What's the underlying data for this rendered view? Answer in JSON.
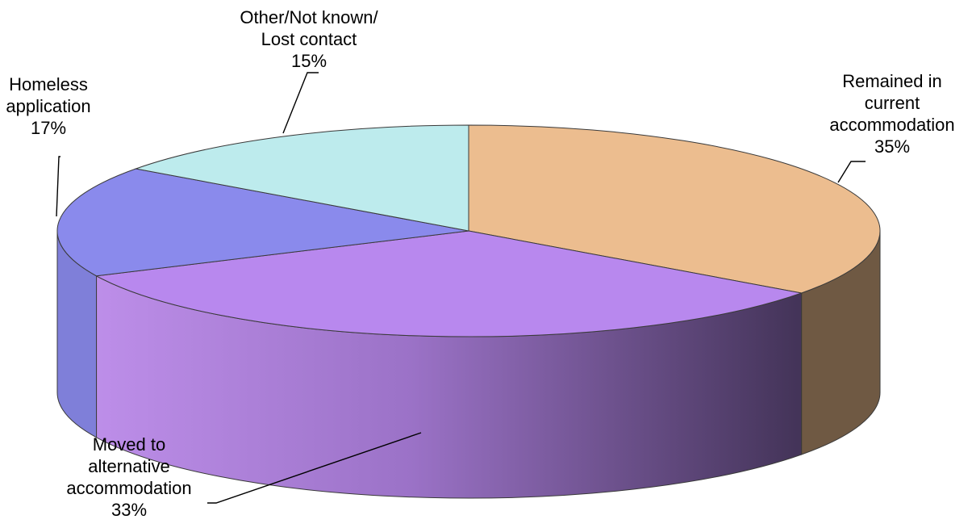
{
  "chart_data": {
    "type": "pie",
    "title": "",
    "style": "3d",
    "slices": [
      {
        "label_lines": [
          "Remained in",
          "current",
          "accommodation"
        ],
        "percent_label": "35%",
        "value": 35,
        "color": "#ecbd8f"
      },
      {
        "label_lines": [
          "Moved to",
          "alternative",
          "accommodation"
        ],
        "percent_label": "33%",
        "value": 33,
        "color": "#b888ee"
      },
      {
        "label_lines": [
          "Homeless",
          "application"
        ],
        "percent_label": "17%",
        "value": 17,
        "color": "#8a8aec"
      },
      {
        "label_lines": [
          "Other/Not known/",
          "Lost contact"
        ],
        "percent_label": "15%",
        "value": 15,
        "color": "#bdebed"
      }
    ]
  }
}
